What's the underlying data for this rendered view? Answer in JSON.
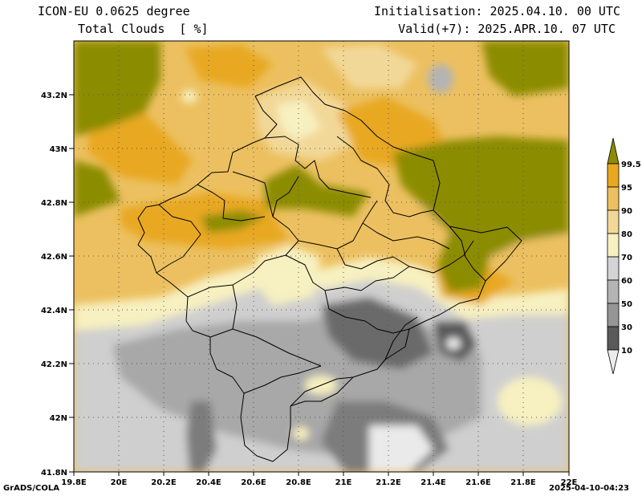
{
  "header": {
    "model": "ICON-EU 0.0625 degree",
    "variable": "Total Clouds  [ %]",
    "init": "Initialisation: 2025.04.10. 00 UTC",
    "valid": "Valid(+7): 2025.APR.10. 07 UTC"
  },
  "axes": {
    "lat_labels": [
      "43.2N",
      "43N",
      "42.8N",
      "42.6N",
      "42.4N",
      "42.2N",
      "42N",
      "41.8N"
    ],
    "lon_labels": [
      "19.8E",
      "20E",
      "20.2E",
      "20.4E",
      "20.6E",
      "20.8E",
      "21E",
      "21.2E",
      "21.4E",
      "21.6E",
      "21.8E",
      "22E"
    ],
    "lat_range": [
      41.8,
      43.4
    ],
    "lon_range": [
      19.8,
      22.0
    ]
  },
  "colorbar": {
    "labels": [
      "99.5",
      "95",
      "90",
      "80",
      "70",
      "60",
      "50",
      "30",
      "10"
    ],
    "colors": [
      "#8c8c00",
      "#e8a820",
      "#ecc060",
      "#f2d898",
      "#f7f0c0",
      "#d4d4d4",
      "#b4b4b4",
      "#969696",
      "#787878",
      "#5a5a5a",
      "#ececec"
    ]
  },
  "footer": {
    "credit": "GrADS/COLA",
    "timestamp": "2025-04-10-04:23"
  }
}
